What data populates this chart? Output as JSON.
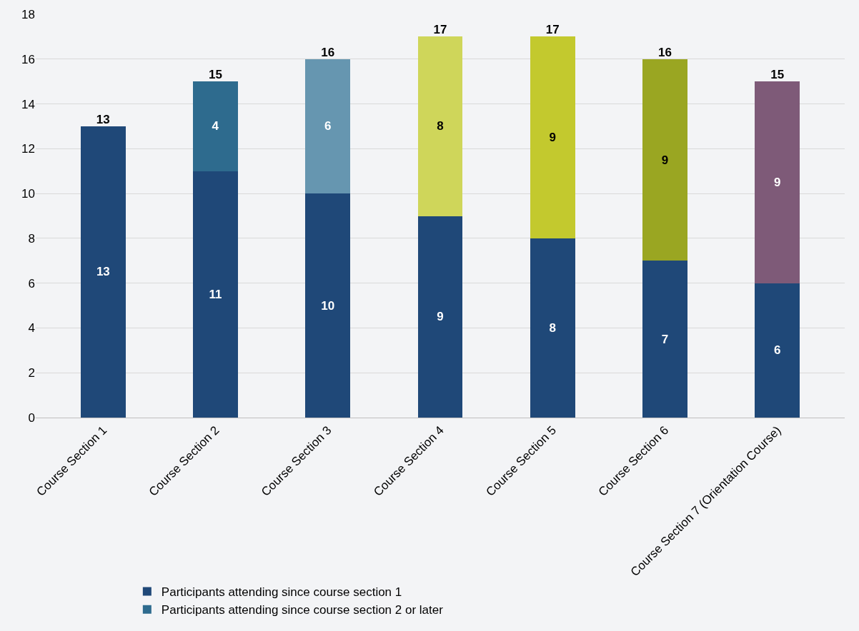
{
  "chart_data": {
    "type": "bar",
    "stacked": true,
    "categories": [
      "Course Section 1",
      "Course Section 2",
      "Course Section 3",
      "Course Section 4",
      "Course Section 5",
      "Course Section 6",
      "Course Section 7 (Orientation Course)"
    ],
    "series": [
      {
        "name": "Participants attending since course section 1",
        "color": "#1f4878",
        "values": [
          13,
          11,
          10,
          9,
          8,
          7,
          6
        ]
      },
      {
        "name": "Participants attending since course section 2 or later",
        "colors": [
          null,
          "#2e6b8e",
          "#6696b0",
          "#cfd65a",
          "#c3c92e",
          "#9aa622",
          "#7e5a78"
        ],
        "values": [
          null,
          4,
          6,
          8,
          9,
          9,
          9
        ]
      }
    ],
    "totals": [
      "13",
      "15",
      "16",
      "17",
      "17",
      "16",
      "15"
    ],
    "data_labels": true,
    "ylim": [
      0,
      18
    ],
    "yticks": [
      0,
      2,
      4,
      6,
      8,
      10,
      12,
      14,
      16,
      18
    ],
    "grid": "y",
    "legend": "bottom"
  }
}
